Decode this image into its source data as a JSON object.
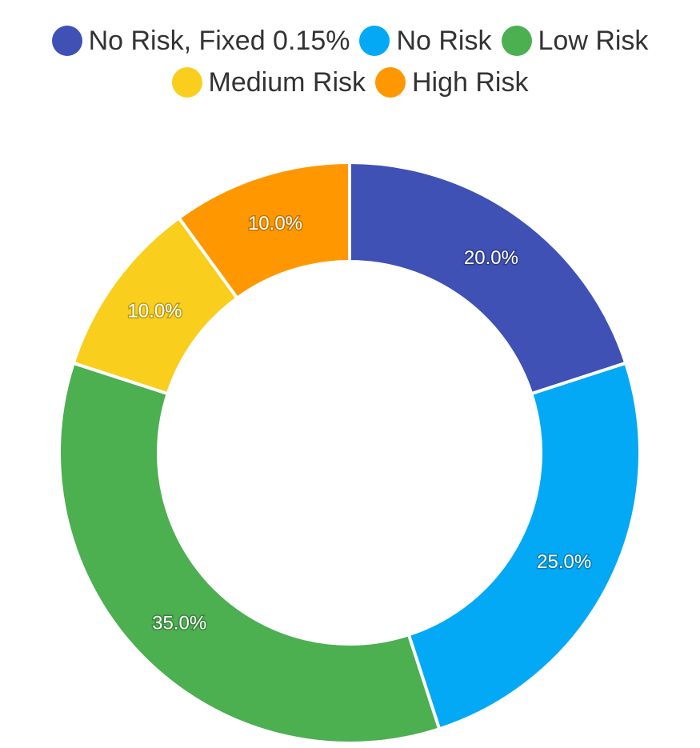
{
  "chart_data": {
    "type": "pie",
    "variant": "donut",
    "title": "",
    "legend_position": "top",
    "categories": [
      "No Risk, Fixed 0.15%",
      "No Risk",
      "Low Risk",
      "Medium Risk",
      "High Risk"
    ],
    "values": [
      20.0,
      25.0,
      35.0,
      10.0,
      10.0
    ],
    "labels": [
      "20.0%",
      "25.0%",
      "35.0%",
      "10.0%",
      "10.0%"
    ],
    "colors": [
      "#3F51B5",
      "#03A9F4",
      "#4CAF50",
      "#F9CE1D",
      "#FF9800"
    ]
  },
  "legend": {
    "items": [
      {
        "label": "No Risk, Fixed 0.15%",
        "color": "#3F51B5"
      },
      {
        "label": "No Risk",
        "color": "#03A9F4"
      },
      {
        "label": "Low Risk",
        "color": "#4CAF50"
      },
      {
        "label": "Medium Risk",
        "color": "#F9CE1D"
      },
      {
        "label": "High Risk",
        "color": "#FF9800"
      }
    ]
  }
}
